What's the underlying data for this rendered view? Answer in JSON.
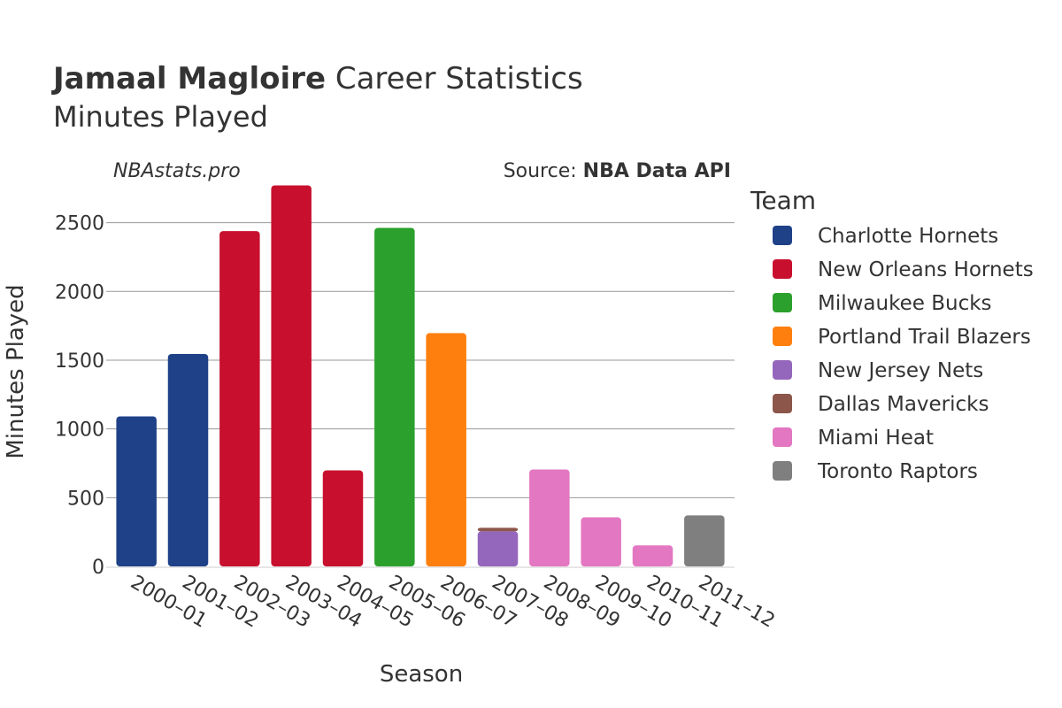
{
  "chart_data": {
    "type": "bar",
    "title_bold": "Jamaal Magloire",
    "title_rest": " Career Statistics",
    "subtitle": "Minutes Played",
    "credit_left": "NBAstats.pro",
    "credit_right_prefix": "Source: ",
    "credit_right_bold": "NBA Data API",
    "xlabel": "Season",
    "ylabel": "Minutes Played",
    "ylim": [
      0,
      2800
    ],
    "yticks": [
      0,
      500,
      1000,
      1500,
      2000,
      2500
    ],
    "grid": true,
    "legend_title": "Team",
    "legend_position": "right",
    "categories": [
      "2000–01",
      "2001–02",
      "2002–03",
      "2003–04",
      "2004–05",
      "2005–06",
      "2006–07",
      "2007–08",
      "2008–09",
      "2009–10",
      "2010–11",
      "2011–12"
    ],
    "series": [
      {
        "name": "Charlotte Hornets",
        "color": "#1f4188",
        "values": [
          1091,
          1545,
          0,
          0,
          0,
          0,
          0,
          0,
          0,
          0,
          0,
          0
        ]
      },
      {
        "name": "New Orleans Hornets",
        "color": "#c8102e",
        "values": [
          0,
          0,
          2439,
          2771,
          698,
          0,
          0,
          0,
          0,
          0,
          0,
          0
        ]
      },
      {
        "name": "Milwaukee Bucks",
        "color": "#2ca02c",
        "values": [
          0,
          0,
          0,
          0,
          0,
          2462,
          0,
          0,
          0,
          0,
          0,
          0
        ]
      },
      {
        "name": "Portland Trail Blazers",
        "color": "#ff7f0e",
        "values": [
          0,
          0,
          0,
          0,
          0,
          0,
          1697,
          0,
          0,
          0,
          0,
          0
        ]
      },
      {
        "name": "New Jersey Nets",
        "color": "#9467bd",
        "values": [
          0,
          0,
          0,
          0,
          0,
          0,
          0,
          255,
          0,
          0,
          0,
          0
        ]
      },
      {
        "name": "Dallas Mavericks",
        "color": "#8c564b",
        "values": [
          0,
          0,
          0,
          0,
          0,
          0,
          0,
          26,
          0,
          0,
          0,
          0
        ]
      },
      {
        "name": "Miami Heat",
        "color": "#e377c2",
        "values": [
          0,
          0,
          0,
          0,
          0,
          0,
          0,
          0,
          705,
          357,
          153,
          0
        ]
      },
      {
        "name": "Toronto Raptors",
        "color": "#7f7f7f",
        "values": [
          0,
          0,
          0,
          0,
          0,
          0,
          0,
          0,
          0,
          0,
          0,
          371
        ]
      }
    ]
  }
}
